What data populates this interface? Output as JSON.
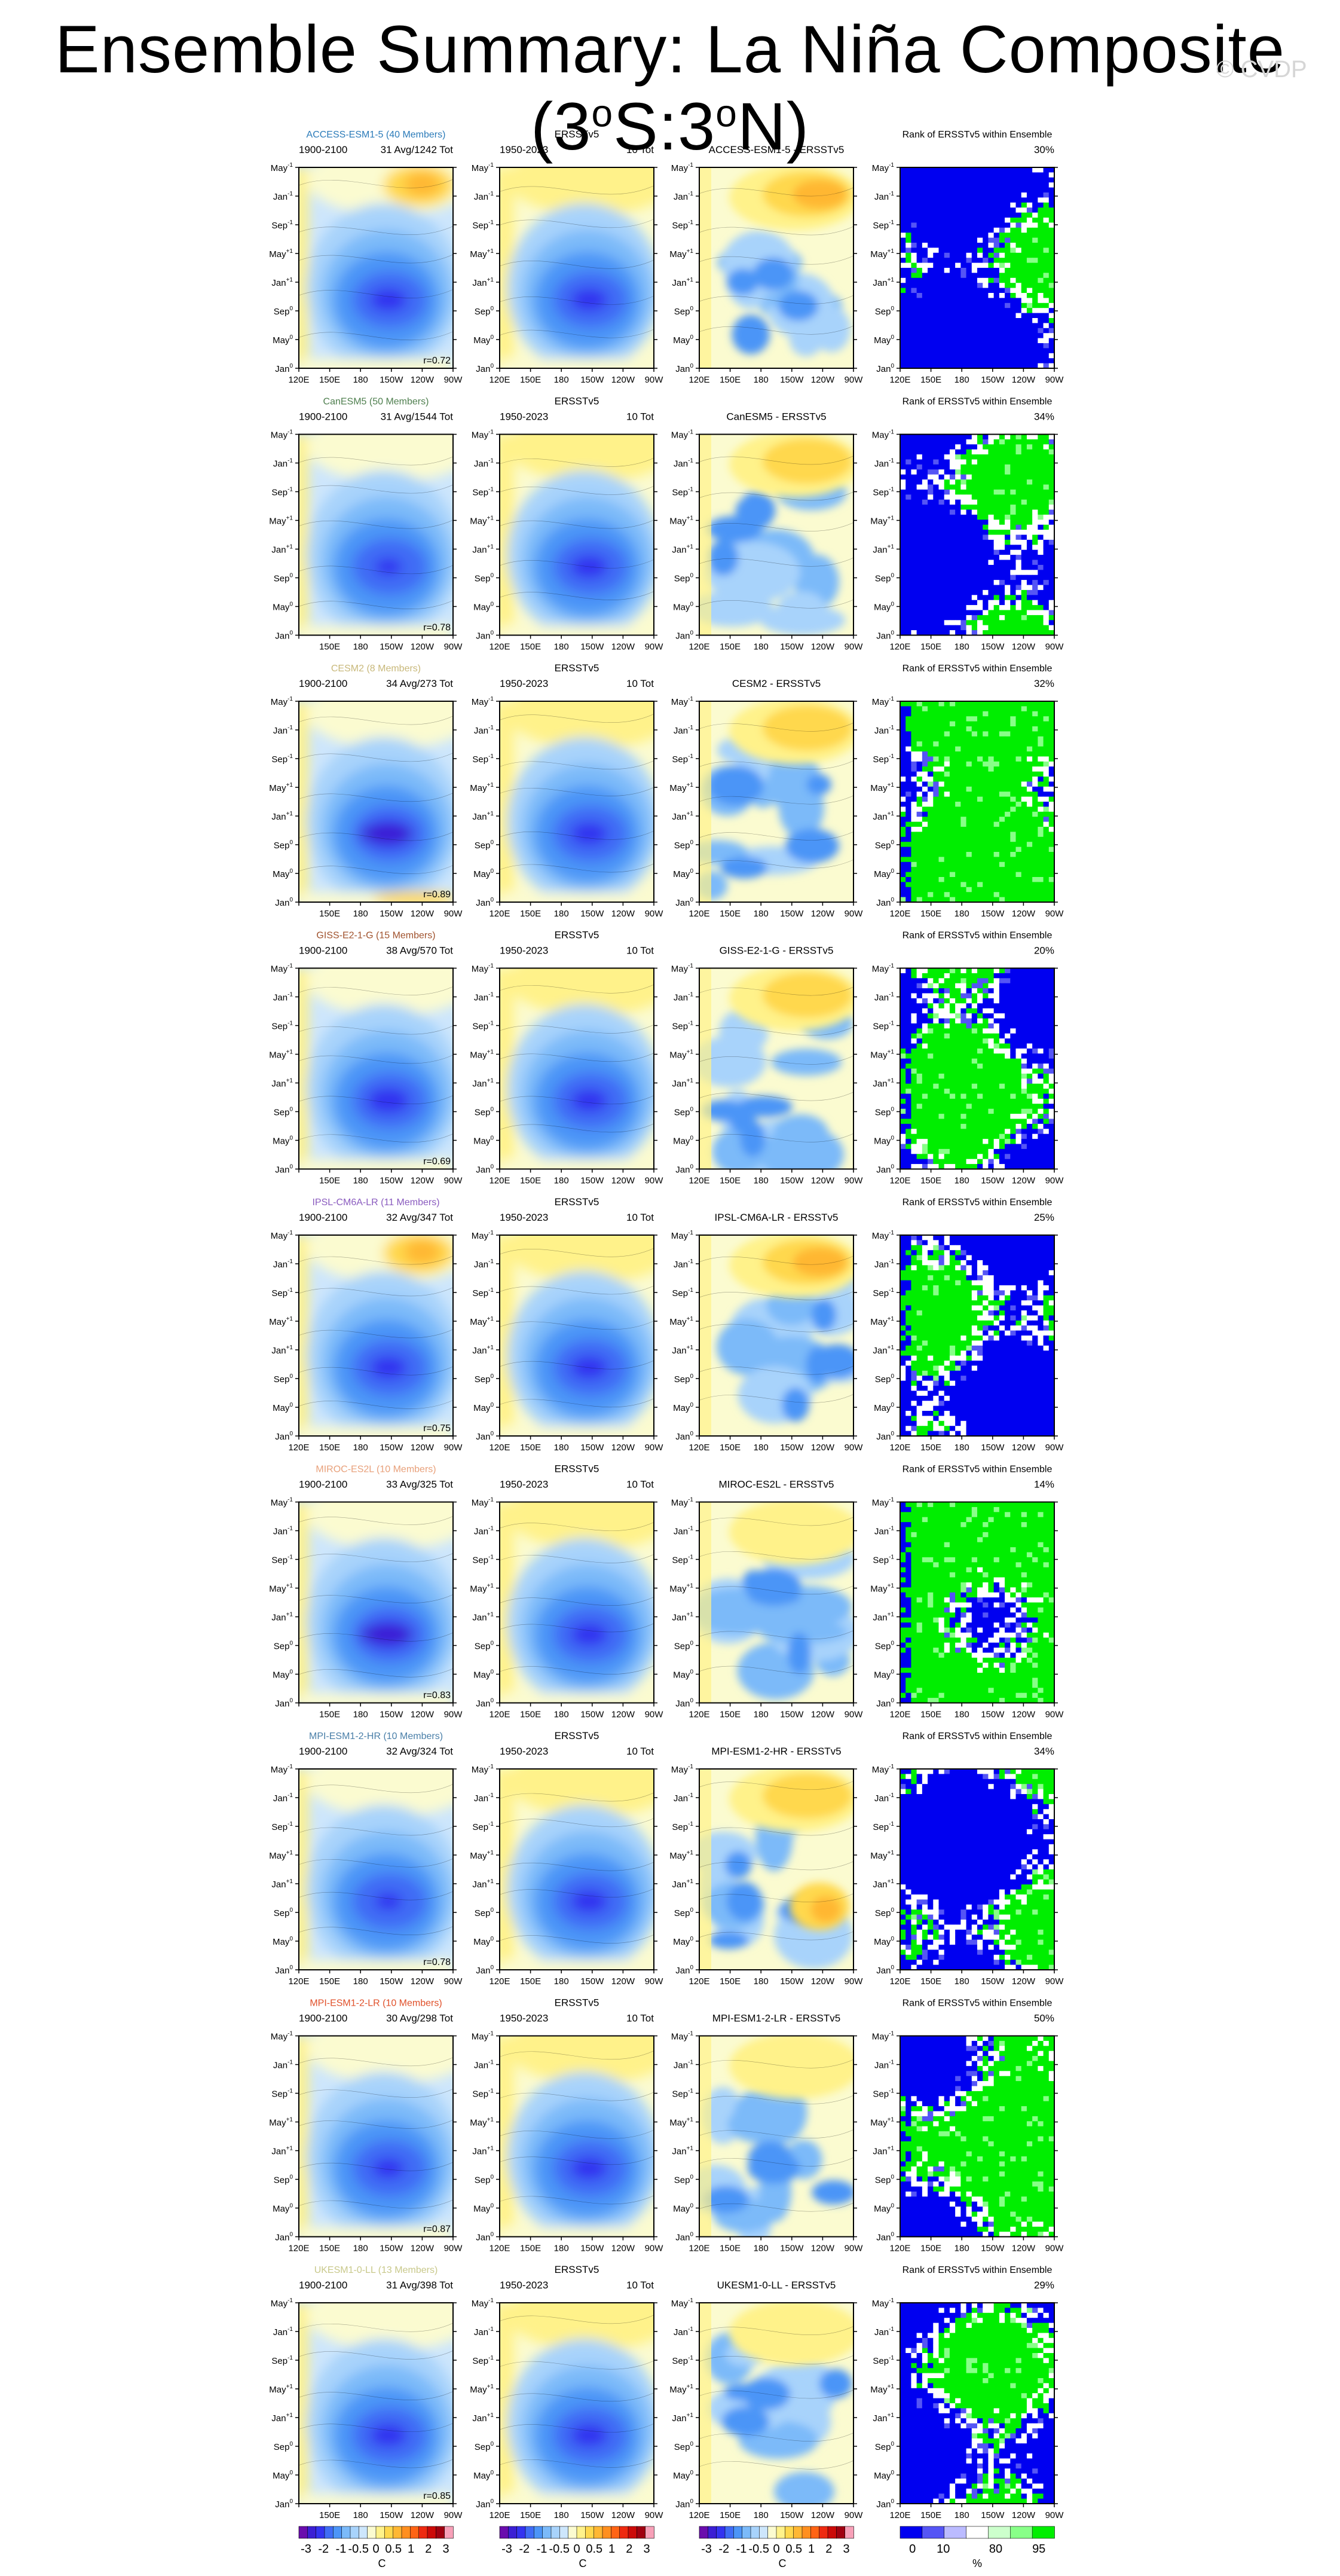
{
  "title": {
    "main": "Ensemble Summary: La Niña Composite (3",
    "deg1": "o",
    "mid": "S:3",
    "deg2": "o",
    "end": "N)"
  },
  "watermark": "© CVDP",
  "axes": {
    "x_ticks": [
      "120E",
      "150E",
      "180",
      "150W",
      "120W",
      "90W"
    ],
    "y_ticks": [
      {
        "base": "Jan",
        "sup": "0"
      },
      {
        "base": "May",
        "sup": "0"
      },
      {
        "base": "Sep",
        "sup": "0"
      },
      {
        "base": "Jan",
        "sup": "+1"
      },
      {
        "base": "May",
        "sup": "+1"
      },
      {
        "base": "Sep",
        "sup": "-1"
      },
      {
        "base": "Jan",
        "sup": "-1"
      },
      {
        "base": "May",
        "sup": "-1"
      }
    ]
  },
  "colorbars": {
    "sst": {
      "ticks": [
        "-3",
        "-2",
        "-1",
        "-0.5",
        "0",
        "0.5",
        "1",
        "2",
        "3"
      ],
      "label": "C",
      "colors": [
        "#6a0dad",
        "#3b1fd4",
        "#3333f0",
        "#3f6cf5",
        "#4c95f7",
        "#7bbaf9",
        "#a8d3fb",
        "#cde6fc",
        "#fbfbd0",
        "#fff28a",
        "#ffd84d",
        "#ffb733",
        "#ff8f1f",
        "#ff6414",
        "#ee2a10",
        "#cc0a08",
        "#a00010",
        "#f7a0b8"
      ]
    },
    "rank": {
      "ticks": [
        "0",
        "10",
        "80",
        "95"
      ],
      "label": "%",
      "colors": [
        "#0000f0",
        "#5555f5",
        "#bbbbff",
        "#ffffff",
        "#ccffcc",
        "#88ff88",
        "#00ee00"
      ]
    }
  },
  "rows": [
    {
      "model": "ACCESS-ESM1-5 (40 Members)",
      "model_color": "#2b7bb9",
      "period": "1900-2100",
      "members": "31 Avg/1242 Tot",
      "r": "r=0.72",
      "obs_title": "ERSSTv5",
      "obs_period": "1950-2023",
      "obs_tot": "10 Tot",
      "diff_title": "ACCESS-ESM1-5 - ERSSTv5",
      "rank_title": "Rank of ERSSTv5 within Ensemble",
      "rank_pct": "30%"
    },
    {
      "model": "CanESM5 (50 Members)",
      "model_color": "#4f7f4f",
      "period": "1900-2100",
      "members": "31 Avg/1544 Tot",
      "r": "r=0.78",
      "obs_title": "ERSSTv5",
      "obs_period": "1950-2023",
      "obs_tot": "10 Tot",
      "diff_title": "CanESM5 - ERSSTv5",
      "rank_title": "Rank of ERSSTv5 within Ensemble",
      "rank_pct": "34%"
    },
    {
      "model": "CESM2 (8 Members)",
      "model_color": "#c8b87a",
      "period": "1900-2100",
      "members": "34 Avg/273 Tot",
      "r": "r=0.89",
      "obs_title": "ERSSTv5",
      "obs_period": "1950-2023",
      "obs_tot": "10 Tot",
      "diff_title": "CESM2 - ERSSTv5",
      "rank_title": "Rank of ERSSTv5 within Ensemble",
      "rank_pct": "32%"
    },
    {
      "model": "GISS-E2-1-G (15 Members)",
      "model_color": "#a0522d",
      "period": "1900-2100",
      "members": "38 Avg/570 Tot",
      "r": "r=0.69",
      "obs_title": "ERSSTv5",
      "obs_period": "1950-2023",
      "obs_tot": "10 Tot",
      "diff_title": "GISS-E2-1-G - ERSSTv5",
      "rank_title": "Rank of ERSSTv5 within Ensemble",
      "rank_pct": "20%"
    },
    {
      "model": "IPSL-CM6A-LR (11 Members)",
      "model_color": "#8a5bbf",
      "period": "1900-2100",
      "members": "32 Avg/347 Tot",
      "r": "r=0.75",
      "obs_title": "ERSSTv5",
      "obs_period": "1950-2023",
      "obs_tot": "10 Tot",
      "diff_title": "IPSL-CM6A-LR - ERSSTv5",
      "rank_title": "Rank of ERSSTv5 within Ensemble",
      "rank_pct": "25%"
    },
    {
      "model": "MIROC-ES2L (10 Members)",
      "model_color": "#e8a07a",
      "period": "1900-2100",
      "members": "33 Avg/325 Tot",
      "r": "r=0.83",
      "obs_title": "ERSSTv5",
      "obs_period": "1950-2023",
      "obs_tot": "10 Tot",
      "diff_title": "MIROC-ES2L - ERSSTv5",
      "rank_title": "Rank of ERSSTv5 within Ensemble",
      "rank_pct": "14%"
    },
    {
      "model": "MPI-ESM1-2-HR (10 Members)",
      "model_color": "#4a7fa8",
      "period": "1900-2100",
      "members": "32 Avg/324 Tot",
      "r": "r=0.78",
      "obs_title": "ERSSTv5",
      "obs_period": "1950-2023",
      "obs_tot": "10 Tot",
      "diff_title": "MPI-ESM1-2-HR - ERSSTv5",
      "rank_title": "Rank of ERSSTv5 within Ensemble",
      "rank_pct": "34%"
    },
    {
      "model": "MPI-ESM1-2-LR (10 Members)",
      "model_color": "#e0502a",
      "period": "1900-2100",
      "members": "30 Avg/298 Tot",
      "r": "r=0.87",
      "obs_title": "ERSSTv5",
      "obs_period": "1950-2023",
      "obs_tot": "10 Tot",
      "diff_title": "MPI-ESM1-2-LR - ERSSTv5",
      "rank_title": "Rank of ERSSTv5 within Ensemble",
      "rank_pct": "50%"
    },
    {
      "model": "UKESM1-0-LL (13 Members)",
      "model_color": "#c8c88a",
      "period": "1900-2100",
      "members": "31 Avg/398 Tot",
      "r": "r=0.85",
      "obs_title": "ERSSTv5",
      "obs_period": "1950-2023",
      "obs_tot": "10 Tot",
      "diff_title": "UKESM1-0-LL - ERSSTv5",
      "rank_title": "Rank of ERSSTv5 within Ensemble",
      "rank_pct": "29%"
    }
  ],
  "chart_data": {
    "type": "heatmap",
    "description_type": "Hovmöller diagrams of SST composite (longitude vs time)",
    "x_range": [
      "120E",
      "90W"
    ],
    "y_range": [
      "Jan0",
      "May-1"
    ],
    "rank_percent": [
      30,
      34,
      32,
      20,
      25,
      14,
      34,
      50,
      29
    ],
    "pattern_correlation": [
      0.72,
      0.78,
      0.89,
      0.69,
      0.75,
      0.83,
      0.78,
      0.87,
      0.85
    ]
  }
}
